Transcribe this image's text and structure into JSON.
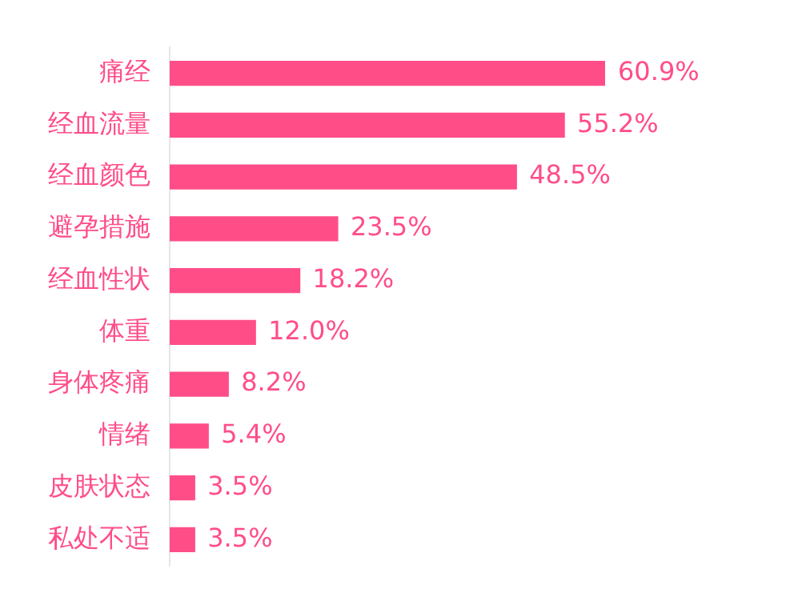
{
  "chart_data": {
    "type": "bar",
    "orientation": "horizontal",
    "categories": [
      "痛经",
      "经血流量",
      "经血颜色",
      "避孕措施",
      "经血性状",
      "体重",
      "身体疼痛",
      "情绪",
      "皮肤状态",
      "私处不适"
    ],
    "values": [
      60.9,
      55.2,
      48.5,
      23.5,
      18.2,
      12.0,
      8.2,
      5.4,
      3.5,
      3.5
    ],
    "value_labels": [
      "60.9%",
      "55.2%",
      "48.5%",
      "23.5%",
      "18.2%",
      "12.0%",
      "8.2%",
      "5.4%",
      "3.5%",
      "3.5%"
    ],
    "color": "#ff4d88"
  }
}
